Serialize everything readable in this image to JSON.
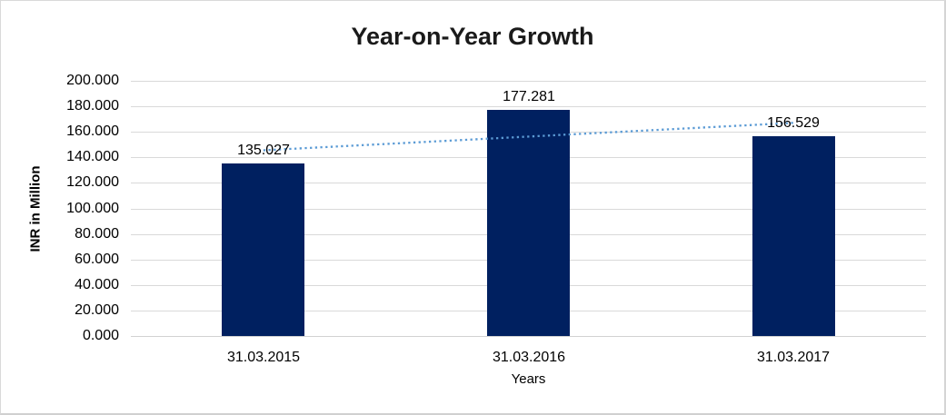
{
  "chart_data": {
    "type": "bar",
    "title": "Year-on-Year Growth",
    "xlabel": "Years",
    "ylabel": "INR in Million",
    "categories": [
      "31.03.2015",
      "31.03.2016",
      "31.03.2017"
    ],
    "values": [
      135.027,
      177.281,
      156.529
    ],
    "data_labels": [
      "135.027",
      "177.281",
      "156.529"
    ],
    "ylim": [
      0,
      200
    ],
    "ytick_step": 20,
    "ytick_labels": [
      "200.000",
      "180.000",
      "160.000",
      "140.000",
      "120.000",
      "100.000",
      "80.000",
      "60.000",
      "40.000",
      "20.000",
      "0.000"
    ],
    "grid": true,
    "legend": "none",
    "trendline": {
      "type": "linear",
      "style": "dotted"
    },
    "colors": {
      "bar": "#002060",
      "trendline": "#5b9bd5",
      "gridline": "#d9d9d9",
      "axis_line": "#d2d2d2",
      "text": "#000000"
    }
  }
}
